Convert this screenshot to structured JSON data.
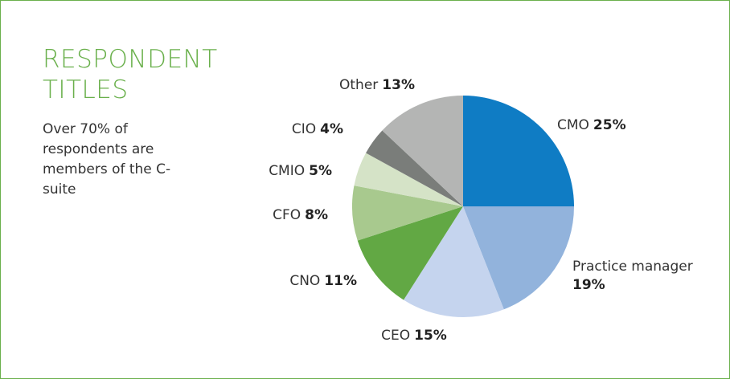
{
  "chart_data": {
    "type": "pie",
    "title": "RESPONDENT TITLES",
    "subtitle": "Over 70% of respondents are members of the C-suite",
    "categories": [
      "CMO",
      "Practice manager",
      "CEO",
      "CNO",
      "CFO",
      "CMIO",
      "CIO",
      "Other"
    ],
    "values": [
      25,
      19,
      15,
      11,
      8,
      5,
      4,
      13
    ],
    "value_labels": [
      "25%",
      "19%",
      "15%",
      "11%",
      "8%",
      "5%",
      "4%",
      "13%"
    ],
    "colors": [
      "#0f7cc4",
      "#92b3dc",
      "#c5d4ee",
      "#62a844",
      "#a8c98e",
      "#d5e3c7",
      "#7a7d7a",
      "#b4b5b4"
    ]
  }
}
